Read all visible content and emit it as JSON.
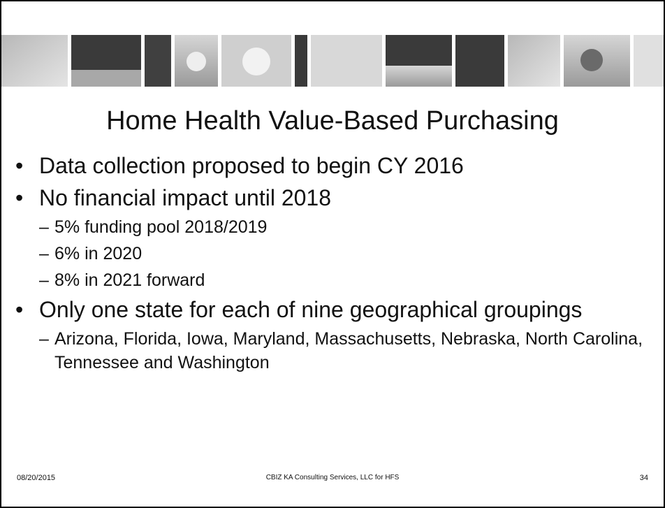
{
  "slide": {
    "title": "Home Health Value-Based Purchasing",
    "bullet_marker": "•",
    "sub_marker": "–",
    "bullets": [
      {
        "text": "Data collection proposed to begin CY 2016",
        "sub": []
      },
      {
        "text": "No financial impact until 2018",
        "sub": [
          "5% funding pool 2018/2019",
          "6% in 2020",
          "8% in 2021 forward"
        ]
      },
      {
        "text": "Only one state for each of nine geographical groupings",
        "sub": [
          "Arizona, Florida, Iowa, Maryland, Massachusetts, Nebraska, North Carolina, Tennessee and Washington"
        ]
      }
    ],
    "footer": {
      "date": "08/20/2015",
      "source": "CBIZ KA Consulting Services, LLC for HFS",
      "page": "34"
    }
  }
}
